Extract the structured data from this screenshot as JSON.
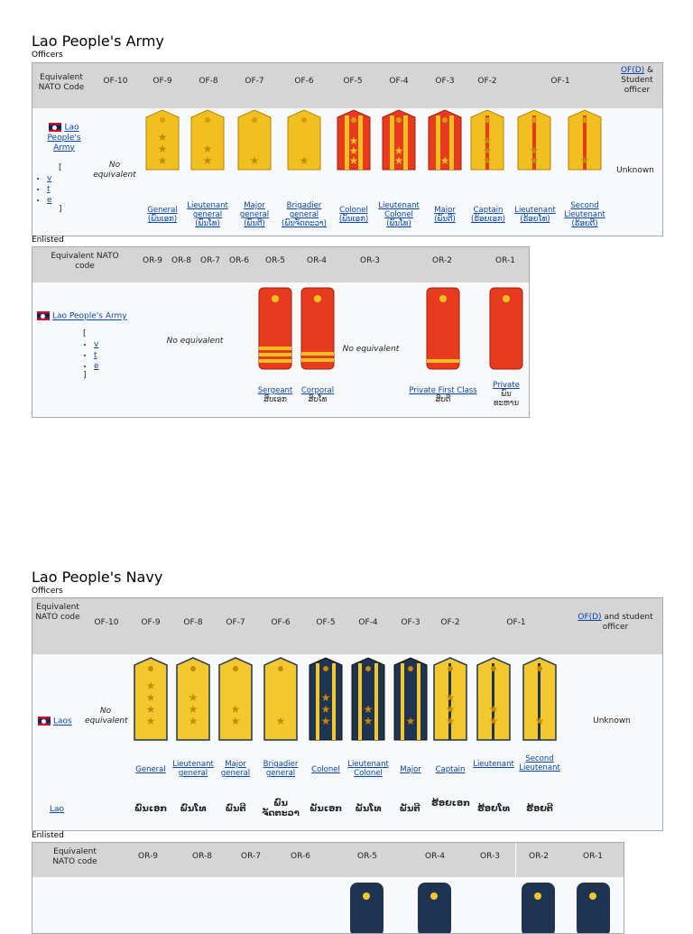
{
  "army": {
    "title": "Lao People's Army",
    "officers_label": "Officers",
    "enlisted_label": "Enlisted",
    "officers": {
      "headers": [
        "Equivalent NATO Code",
        "OF-10",
        "OF-9",
        "OF-8",
        "OF-7",
        "OF-6",
        "OF-5",
        "OF-4",
        "OF-3",
        "OF-2",
        "OF-1"
      ],
      "ofd_link": "OF(D)",
      "ofd_rest": " & Student officer",
      "unit_link": "Lao People's Army",
      "no_equivalent": "No equivalent",
      "unknown": "Unknown",
      "vte": [
        "[",
        "v",
        "t",
        "e",
        "]"
      ],
      "ranks": [
        {
          "en": "General",
          "lao": "(ພົນເອກ)"
        },
        {
          "en": "Lieutenant general",
          "lao": "(ພົນໂທ)"
        },
        {
          "en": "Major general",
          "lao": "(ພົນຕີ)"
        },
        {
          "en": "Brigadier general",
          "lao": "(ພົນຈັດຕະວາ)"
        },
        {
          "en": "Colonel",
          "lao": "(ພັນເອກ)"
        },
        {
          "en": "Lieutenant Colonel",
          "lao": "(ພັນໂທ)"
        },
        {
          "en": "Major",
          "lao": "(ພັນຕີ)"
        },
        {
          "en": "Captain",
          "lao": "(ຮ້ອຍເອກ)"
        },
        {
          "en": "Lieutenant",
          "lao": "(ຮ້ອຍໂທ)"
        },
        {
          "en": "Second Lieutenant",
          "lao": "(ຮ້ອຍຕີ)"
        }
      ]
    },
    "enlisted": {
      "headers": [
        "Equivalent NATO code",
        "OR-9",
        "OR-8",
        "OR-7",
        "OR-6",
        "OR-5",
        "OR-4",
        "OR-3",
        "OR-2",
        "OR-1"
      ],
      "unit_link": "Lao People's Army",
      "no_equivalent_1": "No equivalent",
      "no_equivalent_2": "No equivalent",
      "vte": [
        "[",
        "v",
        "t",
        "e",
        "]"
      ],
      "ranks": [
        {
          "en": "Sergeant",
          "lao": "ສິບເອກ"
        },
        {
          "en": "Corporal",
          "lao": "ສິບໂທ"
        },
        {
          "en": "Private First Class",
          "lao": "ສິບຕີ"
        },
        {
          "en": "Private",
          "lao": "ພົນ ທະຫານ"
        }
      ]
    }
  },
  "navy": {
    "title": "Lao People's Navy",
    "officers_label": "Officers",
    "enlisted_label": "Enlisted",
    "officers": {
      "headers": [
        "Equivalent NATO code",
        "OF-10",
        "OF-9",
        "OF-8",
        "OF-7",
        "OF-6",
        "OF-5",
        "OF-4",
        "OF-3",
        "OF-2",
        "OF-1"
      ],
      "ofd_link": "OF(D)",
      "ofd_rest": " and student officer",
      "unit_link": "Laos",
      "no_equivalent": "No equivalent",
      "unknown": "Unknown",
      "lao_link": "Lao",
      "ranks": [
        {
          "en": "General",
          "lao": "ພົນເອກ"
        },
        {
          "en": "Lieutenant general",
          "lao": "ພົນໂທ"
        },
        {
          "en": "Major general",
          "lao": "ພົນຕີ"
        },
        {
          "en": "Brigadier general",
          "lao": "ພົນຈັດຕະວາ"
        },
        {
          "en": "Colonel",
          "lao": "ພັນເອກ"
        },
        {
          "en": "Lieutenant Colonel",
          "lao": "ພັນໂທ"
        },
        {
          "en": "Major",
          "lao": "ພັນຕີ"
        },
        {
          "en": "Captain",
          "lao": "ຮ້ອຍເອກ"
        },
        {
          "en": "Lieutenant",
          "lao": "ຮ້ອຍໂທ"
        },
        {
          "en": "Second Lieutenant",
          "lao": "ຮ້ອຍຕີ"
        }
      ]
    },
    "enlisted": {
      "headers": [
        "Equivalent NATO code",
        "OR-9",
        "OR-8",
        "OR-7",
        "OR-6",
        "OR-5",
        "OR-4",
        "OR-3",
        "OR-2",
        "OR-1"
      ]
    }
  },
  "colors": {
    "link": "#0645ad",
    "header_bg": "#d5d5d5",
    "army_gold": "#f0c020",
    "army_red": "#e83a1e",
    "navy_blue": "#1f3450",
    "navy_gold": "#f2c82e"
  }
}
